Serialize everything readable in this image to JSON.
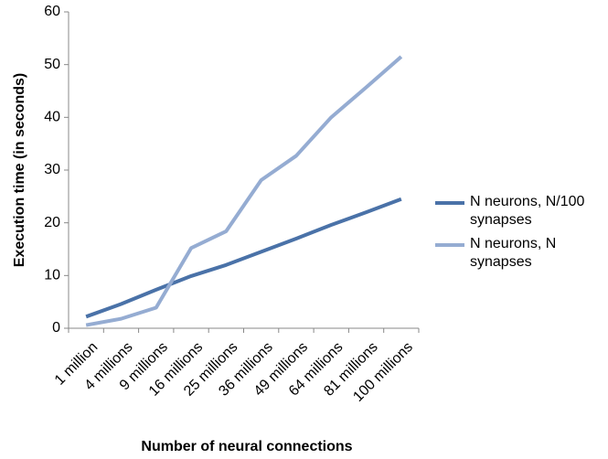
{
  "chart_data": {
    "type": "line",
    "x_label": "Number of neural connections",
    "y_label": "Execution time (in seconds)",
    "categories": [
      "1 million",
      "4 millions",
      "9 millions",
      "16 millions",
      "25 millions",
      "36 millions",
      "49 millions",
      "64 millions",
      "81 millions",
      "100 millions"
    ],
    "series": [
      {
        "name": "N neurons, N/100 synapses",
        "color": "#4a72a8",
        "values": [
          2.2,
          4.6,
          7.3,
          9.9,
          12,
          14.5,
          17,
          19.6,
          22,
          24.5
        ]
      },
      {
        "name": "N neurons, N synapses",
        "color": "#95acd2",
        "values": [
          0.6,
          1.8,
          3.9,
          15.2,
          18.4,
          28.1,
          32.7,
          40,
          45.7,
          51.5
        ]
      }
    ],
    "ylim": [
      0,
      60
    ],
    "yticks": [
      0,
      10,
      20,
      30,
      40,
      50,
      60
    ],
    "grid": false,
    "legend": "right"
  }
}
